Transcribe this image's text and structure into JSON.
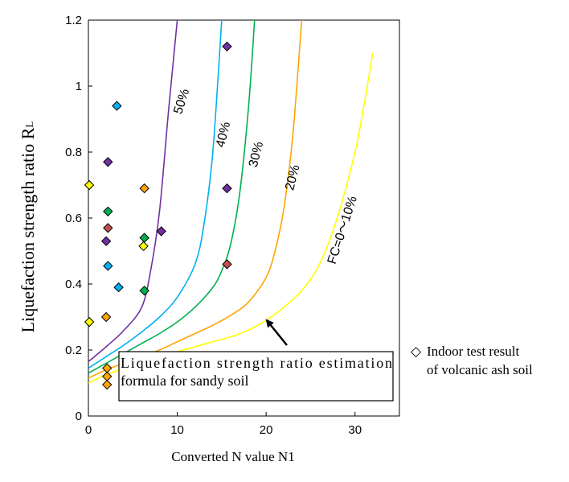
{
  "chart_data": {
    "type": "scatter",
    "title": "",
    "xlabel": "Converted N value N1",
    "ylabel": "Liquefaction strength ratio R",
    "ylabel_subscript": "L",
    "xlim": [
      0,
      35
    ],
    "ylim": [
      0,
      1.2
    ],
    "x_ticks": [
      0,
      10,
      20,
      30
    ],
    "x_tick_labels": [
      "0",
      "10",
      "20",
      "30"
    ],
    "y_ticks": [
      0,
      0.2,
      0.4,
      0.6,
      0.8,
      1.0,
      1.2
    ],
    "y_tick_labels": [
      "0",
      "0.2",
      "0.4",
      "0.6",
      "0.8",
      "1",
      "1.2"
    ],
    "grid": false,
    "curves": [
      {
        "name": "50%",
        "label": "50%",
        "color": "#7030a0",
        "x": [
          0,
          2,
          4,
          6,
          7,
          8,
          9,
          10
        ],
        "y": [
          0.165,
          0.21,
          0.26,
          0.33,
          0.44,
          0.62,
          0.92,
          1.2
        ]
      },
      {
        "name": "40%",
        "label": "40%",
        "color": "#00b0f0",
        "x": [
          0,
          2,
          4,
          6,
          8,
          10,
          12,
          13,
          14,
          15
        ],
        "y": [
          0.145,
          0.18,
          0.215,
          0.255,
          0.3,
          0.36,
          0.46,
          0.58,
          0.8,
          1.2
        ]
      },
      {
        "name": "30%",
        "label": "30%",
        "color": "#00b050",
        "x": [
          0,
          2,
          4,
          6,
          8,
          10,
          12,
          14,
          15,
          16,
          17,
          18,
          18.7
        ],
        "y": [
          0.13,
          0.16,
          0.19,
          0.22,
          0.25,
          0.285,
          0.33,
          0.39,
          0.44,
          0.52,
          0.67,
          0.93,
          1.2
        ]
      },
      {
        "name": "20%",
        "label": "20%",
        "color": "#ffa500",
        "x": [
          0,
          2,
          4,
          6,
          8,
          10,
          12,
          14,
          16,
          18,
          20,
          21,
          22,
          23,
          24
        ],
        "y": [
          0.115,
          0.14,
          0.16,
          0.18,
          0.2,
          0.225,
          0.25,
          0.275,
          0.305,
          0.345,
          0.42,
          0.5,
          0.63,
          0.85,
          1.2
        ]
      },
      {
        "name": "FC=0~10%",
        "label": "FC=0～10%",
        "color": "#ffff00",
        "x": [
          0,
          2,
          4,
          6,
          8,
          10,
          12,
          14,
          16,
          18,
          20,
          22,
          24,
          26,
          28,
          30,
          31,
          32
        ],
        "y": [
          0.1,
          0.125,
          0.145,
          0.165,
          0.18,
          0.195,
          0.21,
          0.225,
          0.24,
          0.26,
          0.29,
          0.33,
          0.38,
          0.46,
          0.6,
          0.8,
          0.94,
          1.1
        ]
      }
    ],
    "points": [
      {
        "x": 3.2,
        "y": 0.94,
        "color": "#00b0f0"
      },
      {
        "x": 2.2,
        "y": 0.455,
        "color": "#00b0f0"
      },
      {
        "x": 3.4,
        "y": 0.39,
        "color": "#00b0f0"
      },
      {
        "x": 2.2,
        "y": 0.77,
        "color": "#7030a0"
      },
      {
        "x": 2.0,
        "y": 0.53,
        "color": "#7030a0"
      },
      {
        "x": 8.2,
        "y": 0.56,
        "color": "#7030a0"
      },
      {
        "x": 15.6,
        "y": 1.12,
        "color": "#7030a0"
      },
      {
        "x": 15.6,
        "y": 0.69,
        "color": "#7030a0"
      },
      {
        "x": 2.2,
        "y": 0.62,
        "color": "#00b050"
      },
      {
        "x": 6.3,
        "y": 0.54,
        "color": "#00b050"
      },
      {
        "x": 6.3,
        "y": 0.38,
        "color": "#00b050"
      },
      {
        "x": 2.2,
        "y": 0.57,
        "color": "#c0504d"
      },
      {
        "x": 15.6,
        "y": 0.46,
        "color": "#c0504d"
      },
      {
        "x": 6.3,
        "y": 0.69,
        "color": "#ffa500"
      },
      {
        "x": 2.0,
        "y": 0.3,
        "color": "#ffa500"
      },
      {
        "x": 2.1,
        "y": 0.145,
        "color": "#ffa500"
      },
      {
        "x": 2.1,
        "y": 0.12,
        "color": "#ffa500"
      },
      {
        "x": 2.1,
        "y": 0.095,
        "color": "#ffa500"
      },
      {
        "x": 0.1,
        "y": 0.7,
        "color": "#ffff00"
      },
      {
        "x": 0.1,
        "y": 0.285,
        "color": "#ffff00"
      },
      {
        "x": 6.2,
        "y": 0.515,
        "color": "#ffff00"
      }
    ],
    "annotation": {
      "text_line1": "Liquefaction strength ratio estimation",
      "text_line2": "formula for sandy soil",
      "arrow_to": {
        "x": 19.8,
        "y": 0.3
      }
    },
    "legend": {
      "marker": "◇",
      "line1": "Indoor test result",
      "line2": "of volcanic ash soil",
      "placement": "right-outside"
    }
  }
}
